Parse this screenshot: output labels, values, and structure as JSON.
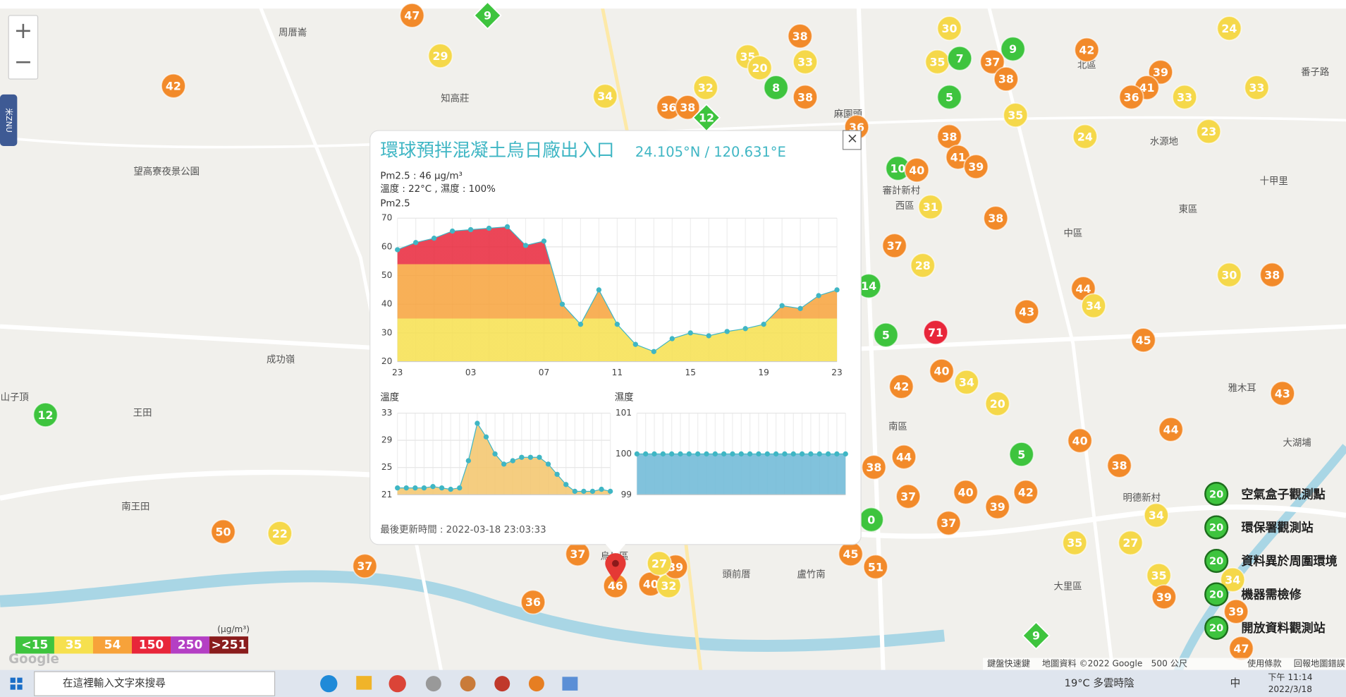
{
  "popup": {
    "title": "環球預拌混凝土烏日廠出入口",
    "coords": "24.105°N / 120.631°E",
    "pm_line": "Pm2.5 : 46 μg/m³",
    "temp_line": "溫度 : 22°C , 濕度 : 100%",
    "updated": "最後更新時間 : 2022-03-18 23:03:33",
    "close": "×"
  },
  "chart_data": [
    {
      "type": "area",
      "title": "Pm2.5",
      "categories": [
        "23",
        null,
        null,
        null,
        "03",
        null,
        null,
        null,
        "07",
        null,
        null,
        null,
        "11",
        null,
        null,
        null,
        "15",
        null,
        null,
        null,
        "19",
        null,
        null,
        null,
        "23"
      ],
      "values": [
        59,
        61.5,
        63,
        65.5,
        66,
        66.5,
        67,
        60.5,
        62,
        40,
        33,
        45,
        33,
        26,
        23.5,
        28,
        30,
        29,
        30.5,
        31.5,
        33,
        39.5,
        38.5,
        43,
        45
      ],
      "ylim": [
        20,
        70
      ],
      "yticks": [
        20,
        30,
        40,
        50,
        60,
        70
      ],
      "color": "#3fb6c4",
      "grid": true
    },
    {
      "type": "area",
      "title": "溫度",
      "values": [
        22,
        22,
        22,
        22,
        22.2,
        22,
        21.8,
        22,
        26,
        31.5,
        29.5,
        27,
        25.5,
        26,
        26.5,
        26.5,
        26.5,
        25.5,
        24,
        22.5,
        21.5,
        21.5,
        21.5,
        21.8,
        21.5
      ],
      "ylim": [
        21,
        33
      ],
      "yticks": [
        21,
        25,
        29,
        33
      ],
      "color": "#3fb6c4",
      "fill": "#f3c46a",
      "grid": true
    },
    {
      "type": "area",
      "title": "濕度",
      "values": [
        100,
        100,
        100,
        100,
        100,
        100,
        100,
        100,
        100,
        100,
        100,
        100,
        100,
        100,
        100,
        100,
        100,
        100,
        100,
        100,
        100,
        100,
        100,
        100,
        100
      ],
      "ylim": [
        99,
        101
      ],
      "yticks": [
        99,
        100,
        101
      ],
      "color": "#3fb6c4",
      "fill": "#6bb7d6",
      "grid": true
    }
  ],
  "aqi_legend": {
    "unit": "(μg/m³)",
    "items": [
      {
        "label": "<15",
        "color": "#3ec43e"
      },
      {
        "label": "35",
        "color": "#f6e04e"
      },
      {
        "label": "54",
        "color": "#f7a23a"
      },
      {
        "label": "150",
        "color": "#e8263a"
      },
      {
        "label": "250",
        "color": "#b43fc4"
      },
      {
        "label": ">251",
        "color": "#8a1c1c"
      }
    ]
  },
  "markers": [
    {
      "value": 47,
      "color": "#f28a2a"
    },
    {
      "value": 9,
      "color": "#3ec43e",
      "shape": "diamond"
    },
    {
      "value": 29,
      "color": "#f5d84a"
    },
    {
      "value": 42,
      "color": "#f28a2a"
    },
    {
      "value": 38,
      "color": "#f28a2a"
    },
    {
      "value": 35,
      "color": "#f5d84a"
    },
    {
      "value": 33,
      "color": "#f5d84a"
    },
    {
      "value": 20,
      "color": "#f5d84a"
    },
    {
      "value": 32,
      "color": "#f5d84a"
    },
    {
      "value": 34,
      "color": "#f5d84a"
    },
    {
      "value": 8,
      "color": "#3ec43e"
    },
    {
      "value": 38,
      "color": "#f28a2a"
    },
    {
      "value": 36,
      "color": "#f28a2a"
    },
    {
      "value": 38,
      "color": "#f28a2a"
    },
    {
      "value": 12,
      "color": "#3ec43e",
      "shape": "diamond"
    },
    {
      "value": 36,
      "color": "#f28a2a"
    },
    {
      "value": 30,
      "color": "#f5d84a"
    },
    {
      "value": 9,
      "color": "#3ec43e"
    },
    {
      "value": 35,
      "color": "#f5d84a"
    },
    {
      "value": 7,
      "color": "#3ec43e"
    },
    {
      "value": 37,
      "color": "#f28a2a"
    },
    {
      "value": 38,
      "color": "#f28a2a"
    },
    {
      "value": 42,
      "color": "#f28a2a"
    },
    {
      "value": 39,
      "color": "#f28a2a"
    },
    {
      "value": 41,
      "color": "#f28a2a"
    },
    {
      "value": 36,
      "color": "#f28a2a"
    },
    {
      "value": 33,
      "color": "#f5d84a"
    },
    {
      "value": 24,
      "color": "#f5d84a"
    },
    {
      "value": 33,
      "color": "#f5d84a"
    },
    {
      "value": 5,
      "color": "#3ec43e"
    },
    {
      "value": 35,
      "color": "#f5d84a"
    },
    {
      "value": 38,
      "color": "#f28a2a"
    },
    {
      "value": 24,
      "color": "#f5d84a"
    },
    {
      "value": 23,
      "color": "#f5d84a"
    },
    {
      "value": 10,
      "color": "#3ec43e"
    },
    {
      "value": 40,
      "color": "#f28a2a"
    },
    {
      "value": 41,
      "color": "#f28a2a"
    },
    {
      "value": 39,
      "color": "#f28a2a"
    },
    {
      "value": 31,
      "color": "#f5d84a"
    },
    {
      "value": 38,
      "color": "#f28a2a"
    },
    {
      "value": 37,
      "color": "#f28a2a"
    },
    {
      "value": 28,
      "color": "#f5d84a"
    },
    {
      "value": 14,
      "color": "#3ec43e"
    },
    {
      "value": 5,
      "color": "#3ec43e"
    },
    {
      "value": 71,
      "color": "#e8263a"
    },
    {
      "value": 43,
      "color": "#f28a2a"
    },
    {
      "value": 44,
      "color": "#f28a2a"
    },
    {
      "value": 34,
      "color": "#f5d84a"
    },
    {
      "value": 30,
      "color": "#f5d84a"
    },
    {
      "value": 38,
      "color": "#f28a2a"
    },
    {
      "value": 45,
      "color": "#f28a2a"
    },
    {
      "value": 42,
      "color": "#f28a2a"
    },
    {
      "value": 40,
      "color": "#f28a2a"
    },
    {
      "value": 34,
      "color": "#f5d84a"
    },
    {
      "value": 20,
      "color": "#f5d84a"
    },
    {
      "value": 43,
      "color": "#f28a2a"
    },
    {
      "value": 44,
      "color": "#f28a2a"
    },
    {
      "value": 40,
      "color": "#f28a2a"
    },
    {
      "value": 5,
      "color": "#3ec43e"
    },
    {
      "value": 38,
      "color": "#f28a2a"
    },
    {
      "value": 38,
      "color": "#f28a2a"
    },
    {
      "value": 44,
      "color": "#f28a2a"
    },
    {
      "value": 37,
      "color": "#f28a2a"
    },
    {
      "value": 40,
      "color": "#f28a2a"
    },
    {
      "value": 37,
      "color": "#f28a2a"
    },
    {
      "value": 39,
      "color": "#f28a2a"
    },
    {
      "value": 42,
      "color": "#f28a2a"
    },
    {
      "value": 34,
      "color": "#f5d84a"
    },
    {
      "value": 35,
      "color": "#f5d84a"
    },
    {
      "value": 27,
      "color": "#f5d84a"
    },
    {
      "value": 0,
      "color": "#3ec43e"
    },
    {
      "value": 45,
      "color": "#f28a2a"
    },
    {
      "value": 51,
      "color": "#f28a2a"
    },
    {
      "value": 35,
      "color": "#f5d84a"
    },
    {
      "value": 39,
      "color": "#f28a2a"
    },
    {
      "value": 34,
      "color": "#f5d84a"
    },
    {
      "value": 39,
      "color": "#f28a2a"
    },
    {
      "value": 47,
      "color": "#f28a2a"
    },
    {
      "value": 9,
      "color": "#3ec43e",
      "shape": "diamond"
    },
    {
      "value": 12,
      "color": "#3ec43e"
    },
    {
      "value": 50,
      "color": "#f28a2a"
    },
    {
      "value": 22,
      "color": "#f5d84a"
    },
    {
      "value": 37,
      "color": "#f28a2a"
    },
    {
      "value": 37,
      "color": "#f28a2a"
    },
    {
      "value": 46,
      "color": "#f28a2a"
    },
    {
      "value": 40,
      "color": "#f28a2a"
    },
    {
      "value": 32,
      "color": "#f5d84a"
    },
    {
      "value": 39,
      "color": "#f28a2a"
    },
    {
      "value": 27,
      "color": "#f5d84a"
    },
    {
      "value": 36,
      "color": "#f28a2a"
    }
  ],
  "map_labels": [
    "周厝崙",
    "知高莊",
    "北區",
    "西區",
    "中區",
    "東區",
    "南區",
    "大里區",
    "成功嶺",
    "王田",
    "南王田",
    "頭前厝",
    "麻園頭",
    "十甲里",
    "番子路",
    "雅木耳",
    "大湖埔",
    "望高寮夜景公園",
    "山子頂",
    "水源地",
    "審計新村",
    "烏日區",
    "盧竹南",
    "明德新村"
  ],
  "station_legend": {
    "icon_value": "20",
    "items": [
      "空氣盒子觀測點",
      "環保署觀測站",
      "資料異於周圍環境",
      "機器需檢修",
      "開放資料觀測站"
    ]
  },
  "map_controls": {
    "zoom_in": "+",
    "zoom_out": "−",
    "side_tab": "米ZNU",
    "logo": "Google"
  },
  "attribution": [
    "鍵盤快速鍵",
    "地圖資料 ©2022 Google",
    "500 公尺",
    "使用條款",
    "回報地圖錯誤"
  ],
  "taskbar": {
    "search": "在這裡輸入文字來搜尋",
    "weather": "19°C 多雲時陰",
    "ime": "中",
    "time": "下午 11:14",
    "date": "2022/3/18"
  }
}
